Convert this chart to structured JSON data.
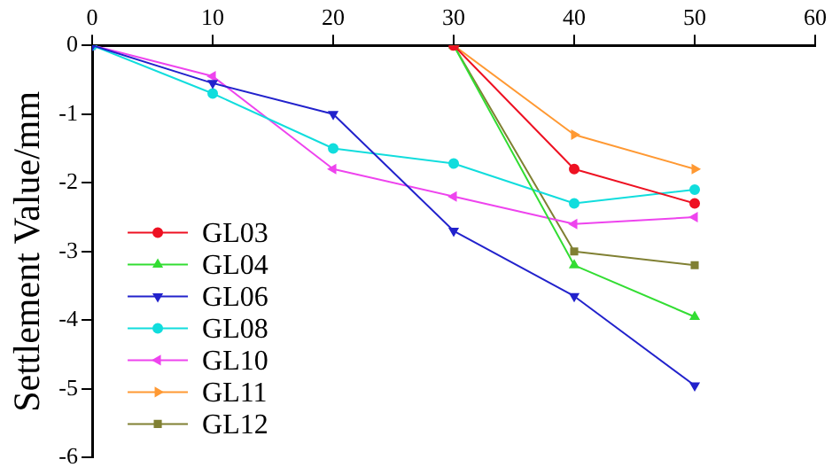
{
  "chart_data": {
    "type": "line",
    "ylabel": "Settlement Value/mm",
    "x": [
      0,
      10,
      20,
      30,
      40,
      50
    ],
    "xlim": [
      0,
      60
    ],
    "xticks": [
      0,
      10,
      20,
      30,
      40,
      50,
      60
    ],
    "ylim": [
      -6,
      0
    ],
    "yticks": [
      -6,
      -5,
      -4,
      -3,
      -2,
      -1,
      0
    ],
    "grid": false,
    "legend": "bottom left",
    "line_style": "solid",
    "series": [
      {
        "name": "GL03",
        "color": "#ee1122",
        "marker": "circle",
        "x": [
          30,
          40,
          50
        ],
        "values": [
          0,
          -1.8,
          -2.3
        ]
      },
      {
        "name": "GL04",
        "color": "#33dd33",
        "marker": "triangle",
        "x": [
          30,
          40,
          50
        ],
        "values": [
          0,
          -3.2,
          -3.95
        ]
      },
      {
        "name": "GL06",
        "color": "#2222cc",
        "marker": "triangle-down",
        "values": [
          0,
          -0.55,
          -1.0,
          -2.7,
          -3.65,
          -4.95
        ]
      },
      {
        "name": "GL08",
        "color": "#11dddd",
        "marker": "circle",
        "values": [
          0,
          -0.7,
          -1.5,
          -1.72,
          -2.3,
          -2.1
        ]
      },
      {
        "name": "GL10",
        "color": "#ee44ee",
        "marker": "triangle-left",
        "values": [
          0,
          -0.45,
          -1.8,
          -2.2,
          -2.6,
          -2.5
        ]
      },
      {
        "name": "GL11",
        "color": "#ff9933",
        "marker": "triangle-right",
        "x": [
          30,
          40,
          50
        ],
        "values": [
          0,
          -1.3,
          -1.8
        ]
      },
      {
        "name": "GL12",
        "color": "#808033",
        "marker": "square",
        "x": [
          30,
          40,
          50
        ],
        "values": [
          0,
          -3.0,
          -3.2
        ]
      }
    ]
  }
}
